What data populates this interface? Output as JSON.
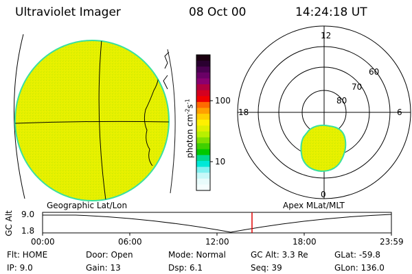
{
  "header": {
    "title": "Ultraviolet Imager",
    "date": "08 Oct 00",
    "time": "14:24:18 UT"
  },
  "colorbar": {
    "label": "photon cm",
    "label_sup1": "-2",
    "label_mid": "s",
    "label_sup2": "-1",
    "ticks": [
      "100",
      "10"
    ],
    "colors": [
      "#1a0010",
      "#2a0030",
      "#4a0050",
      "#6a0066",
      "#8a0070",
      "#b00040",
      "#d40020",
      "#f00000",
      "#ff6a00",
      "#ffa000",
      "#ffd000",
      "#fff000",
      "#e0f000",
      "#b8f000",
      "#80e000",
      "#40d000",
      "#00c800",
      "#00d890",
      "#00e8d8",
      "#80f0f0",
      "#c8f8f8",
      "#e8fcfc",
      "#f4fefe"
    ]
  },
  "labels": {
    "geo": "Geographic Lat/Lon",
    "apex": "Apex MLat/MLT"
  },
  "polar": {
    "mlt": [
      "12",
      "18",
      "6",
      "0"
    ],
    "mlat": [
      "60",
      "70",
      "80"
    ]
  },
  "timeline": {
    "ylabel": "GC Alt",
    "ytick_top": "9.0",
    "ytick_bottom": "1.8",
    "xticks": [
      "00:00",
      "06:00",
      "12:00",
      "18:00",
      "23:59"
    ]
  },
  "status": {
    "flt": "Flt: HOME",
    "ip": "IP:  9.0",
    "door": "Door: Open",
    "gain": "Gain: 13",
    "mode": "Mode: Normal",
    "dsp": "Dsp:   6.1",
    "gcalt": "GC Alt: 3.3 Re",
    "seq": "Seq: 39",
    "glat": "GLat: -59.8",
    "glon": "GLon: 136.0"
  },
  "colors": {
    "disk_fill": "#e6f000",
    "disk_edge": "#39e0a0",
    "marker": "#e00000"
  }
}
